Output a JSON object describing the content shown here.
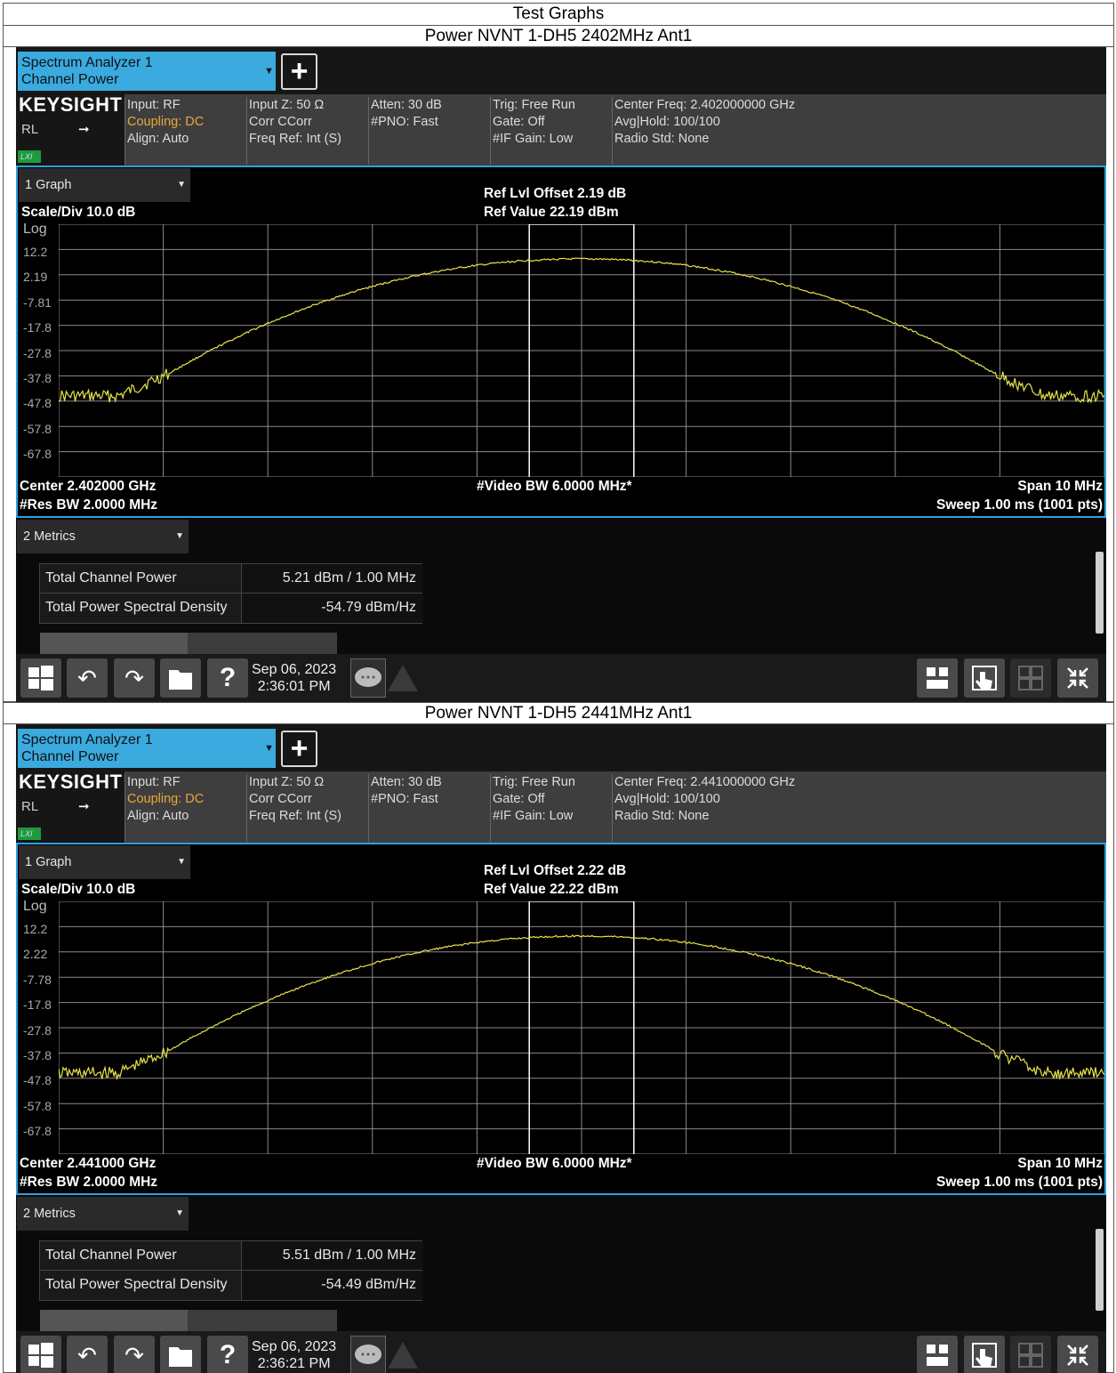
{
  "page_title": "Test Graphs",
  "panels": [
    {
      "caption": "Power NVNT 1-DH5 2402MHz Ant1",
      "tab": {
        "line1": "Spectrum Analyzer 1",
        "line2": "Channel Power"
      },
      "brand": "KEYSIGHT",
      "rl": "RL",
      "lxi": "LXI",
      "info": {
        "input": "Input: RF",
        "coupling": "Coupling: DC",
        "align": "Align: Auto",
        "inputz": "Input Z: 50 Ω",
        "corr": "Corr CCorr",
        "freqref": "Freq Ref: Int (S)",
        "atten": "Atten: 30 dB",
        "pno": "#PNO: Fast",
        "trig": "Trig: Free Run",
        "gate": "Gate: Off",
        "ifgain": "#IF Gain: Low",
        "center": "Center Freq: 2.402000000 GHz",
        "avg": "Avg|Hold: 100/100",
        "radio": "Radio Std: None"
      },
      "graph_dd": "1 Graph",
      "scale": "Scale/Div 10.0 dB",
      "log": "Log",
      "ref_offset": "Ref Lvl Offset 2.19 dB",
      "ref_value": "Ref Value 22.19 dBm",
      "y_ticks": [
        "12.2",
        "2.19",
        "-7.81",
        "-17.8",
        "-27.8",
        "-37.8",
        "-47.8",
        "-57.8",
        "-67.8"
      ],
      "center_label": "Center 2.402000 GHz",
      "res_bw": "#Res BW 2.0000 MHz",
      "video_bw": "#Video BW 6.0000 MHz*",
      "span": "Span 10 MHz",
      "sweep": "Sweep 1.00 ms (1001 pts)",
      "metrics_dd": "2 Metrics",
      "metrics": [
        {
          "name": "Total Channel Power",
          "value": "5.21 dBm / 1.00 MHz"
        },
        {
          "name": "Total Power Spectral Density",
          "value": "-54.79 dBm/Hz"
        }
      ],
      "date": "Sep 06, 2023",
      "time": "2:36:01 PM"
    },
    {
      "caption": "Power NVNT 1-DH5 2441MHz Ant1",
      "tab": {
        "line1": "Spectrum Analyzer 1",
        "line2": "Channel Power"
      },
      "brand": "KEYSIGHT",
      "rl": "RL",
      "lxi": "LXI",
      "info": {
        "input": "Input: RF",
        "coupling": "Coupling: DC",
        "align": "Align: Auto",
        "inputz": "Input Z: 50 Ω",
        "corr": "Corr CCorr",
        "freqref": "Freq Ref: Int (S)",
        "atten": "Atten: 30 dB",
        "pno": "#PNO: Fast",
        "trig": "Trig: Free Run",
        "gate": "Gate: Off",
        "ifgain": "#IF Gain: Low",
        "center": "Center Freq: 2.441000000 GHz",
        "avg": "Avg|Hold: 100/100",
        "radio": "Radio Std: None"
      },
      "graph_dd": "1 Graph",
      "scale": "Scale/Div 10.0 dB",
      "log": "Log",
      "ref_offset": "Ref Lvl Offset 2.22 dB",
      "ref_value": "Ref Value 22.22 dBm",
      "y_ticks": [
        "12.2",
        "2.22",
        "-7.78",
        "-17.8",
        "-27.8",
        "-37.8",
        "-47.8",
        "-57.8",
        "-67.8"
      ],
      "center_label": "Center 2.441000 GHz",
      "res_bw": "#Res BW 2.0000 MHz",
      "video_bw": "#Video BW 6.0000 MHz*",
      "span": "Span 10 MHz",
      "sweep": "Sweep 1.00 ms (1001 pts)",
      "metrics_dd": "2 Metrics",
      "metrics": [
        {
          "name": "Total Channel Power",
          "value": "5.51 dBm / 1.00 MHz"
        },
        {
          "name": "Total Power Spectral Density",
          "value": "-54.49 dBm/Hz"
        }
      ],
      "date": "Sep 06, 2023",
      "time": "2:36:21 PM"
    }
  ],
  "colors": {
    "accent": "#3aaadf",
    "trace": "#e8e34a",
    "grid": "#8a8a8a",
    "coupling": "#e9a73a"
  }
}
